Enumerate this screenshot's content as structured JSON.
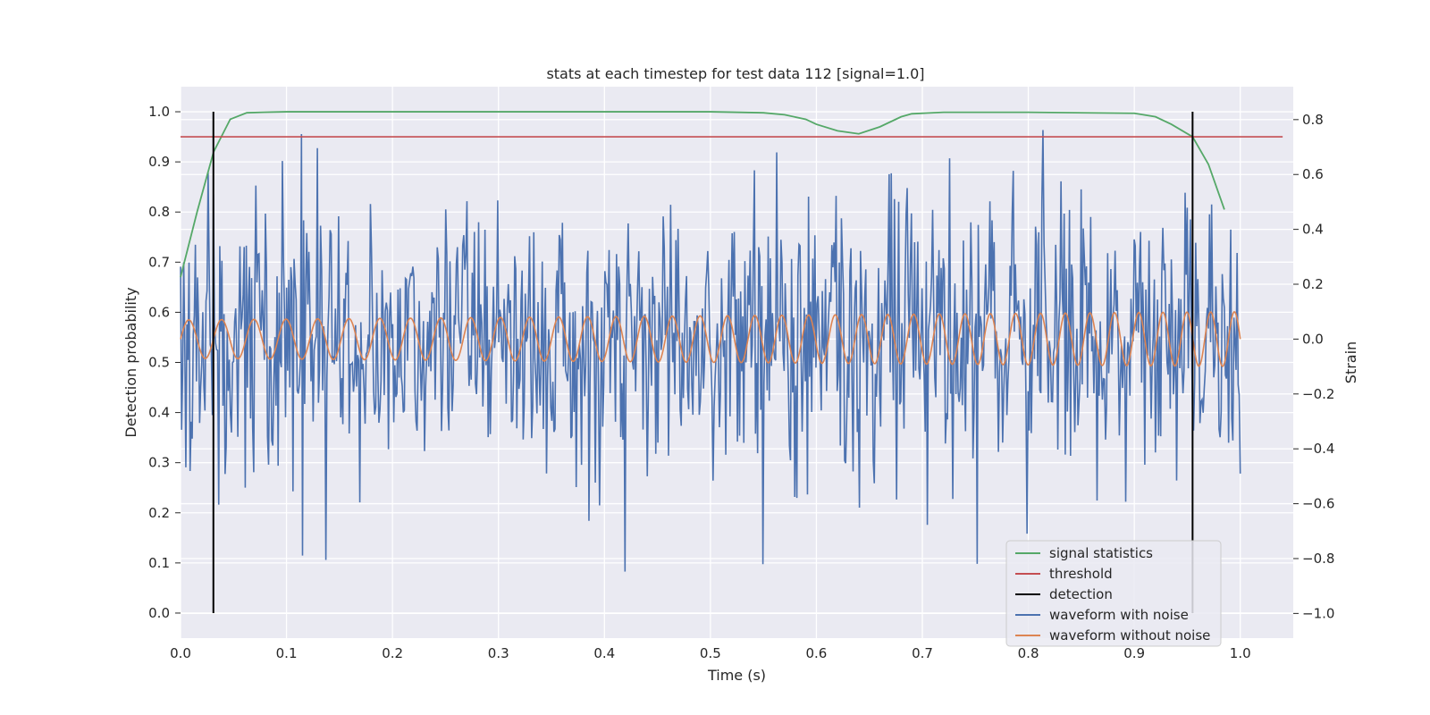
{
  "chart_data": {
    "type": "line",
    "title": "stats at each timestep for test data 112 [signal=1.0]",
    "xlabel": "Time (s)",
    "ylabel_left": "Detection probability",
    "ylabel_right": "Strain",
    "xlim": [
      0.0,
      1.05
    ],
    "ylim_left": [
      -0.05,
      1.05
    ],
    "ylim_right": [
      -1.09,
      0.92
    ],
    "x_ticks": [
      0.0,
      0.1,
      0.2,
      0.3,
      0.4,
      0.5,
      0.6,
      0.7,
      0.8,
      0.9,
      1.0
    ],
    "x_tick_labels": [
      "0.0",
      "0.1",
      "0.2",
      "0.3",
      "0.4",
      "0.5",
      "0.6",
      "0.7",
      "0.8",
      "0.9",
      "1.0"
    ],
    "y_left_ticks": [
      0.0,
      0.1,
      0.2,
      0.3,
      0.4,
      0.5,
      0.6,
      0.7,
      0.8,
      0.9,
      1.0
    ],
    "y_left_tick_labels": [
      "0.0",
      "0.1",
      "0.2",
      "0.3",
      "0.4",
      "0.5",
      "0.6",
      "0.7",
      "0.8",
      "0.9",
      "1.0"
    ],
    "y_right_ticks": [
      -1.0,
      -0.8,
      -0.6,
      -0.4,
      -0.2,
      0.0,
      0.2,
      0.4,
      0.6,
      0.8
    ],
    "y_right_tick_labels": [
      "−1.0",
      "−0.8",
      "−0.6",
      "−0.4",
      "−0.2",
      "0.0",
      "0.2",
      "0.4",
      "0.6",
      "0.8"
    ],
    "grid": true,
    "legend_position": "bottom-right",
    "colors": {
      "background": "#eaeaf2",
      "grid": "#ffffff",
      "signal_statistics": "#55a868",
      "threshold": "#c44e52",
      "detection": "#000000",
      "waveform_with_noise": "#4c72b0",
      "waveform_without_noise": "#dd8452"
    },
    "series": [
      {
        "name": "signal statistics",
        "axis": "left",
        "x": [
          0.0,
          0.0156,
          0.0312,
          0.0469,
          0.0625,
          0.0781,
          0.1,
          0.2,
          0.3,
          0.4,
          0.5,
          0.55,
          0.57,
          0.59,
          0.6,
          0.62,
          0.64,
          0.66,
          0.68,
          0.69,
          0.72,
          0.8,
          0.9,
          0.92,
          0.935,
          0.955,
          0.97,
          0.985
        ],
        "values": [
          0.67,
          0.8,
          0.92,
          0.985,
          0.998,
          0.999,
          1.0,
          1.0,
          1.0,
          1.0,
          1.0,
          0.998,
          0.994,
          0.985,
          0.975,
          0.962,
          0.956,
          0.97,
          0.99,
          0.996,
          0.999,
          0.999,
          0.997,
          0.99,
          0.975,
          0.95,
          0.895,
          0.805
        ]
      },
      {
        "name": "threshold",
        "axis": "left",
        "x": [
          0.0,
          1.04
        ],
        "values": [
          0.95,
          0.95
        ]
      },
      {
        "name": "detection",
        "axis": "left",
        "x": [
          0.031,
          0.955
        ],
        "values": [
          1.0,
          1.0
        ]
      },
      {
        "name": "waveform with noise",
        "axis": "right",
        "x_start": 0.0,
        "x_end": 1.0,
        "samples": 1000,
        "noise_std": 0.25,
        "values": []
      },
      {
        "name": "waveform without noise",
        "axis": "right",
        "x_start": 0.0,
        "x_end": 1.0,
        "f_start": 32,
        "f_end": 45,
        "amplitude_start": 0.07,
        "amplitude_end": 0.1,
        "values": []
      }
    ],
    "legend": [
      {
        "label": "signal statistics",
        "series": "signal_statistics"
      },
      {
        "label": "threshold",
        "series": "threshold"
      },
      {
        "label": "detection",
        "series": "detection"
      },
      {
        "label": "waveform with noise",
        "series": "waveform_with_noise"
      },
      {
        "label": "waveform without noise",
        "series": "waveform_without_noise"
      }
    ]
  }
}
